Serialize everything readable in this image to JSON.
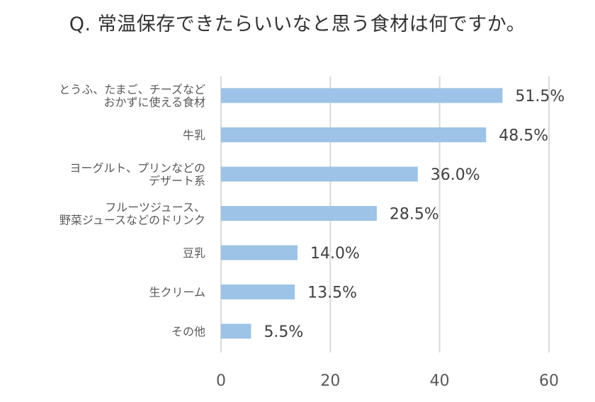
{
  "chart_data": {
    "type": "bar",
    "orientation": "horizontal",
    "title": "Q. 常温保存できたらいいなと思う食材は何ですか。",
    "xlabel": "",
    "ylabel": "",
    "categories": [
      "とうふ、たまご、チーズなど\nおかずに使える食材",
      "牛乳",
      "ヨーグルト、プリンなどの\nデザート系",
      "フルーツジュース、\n野菜ジュースなどのドリンク",
      "豆乳",
      "生クリーム",
      "その他"
    ],
    "values": [
      51.5,
      48.5,
      36.0,
      28.5,
      14.0,
      13.5,
      5.5
    ],
    "data_labels": [
      "51.5%",
      "48.5%",
      "36.0%",
      "28.5%",
      "14.0%",
      "13.5%",
      "5.5%"
    ],
    "xlim": [
      0,
      60
    ],
    "x_ticks": [
      0,
      20,
      40,
      60
    ],
    "x_tick_labels": [
      "0",
      "20",
      "40",
      "60"
    ],
    "grid": true,
    "legend": "none",
    "bar_color": "#9dc3e6",
    "grid_color": "#d9d9d9"
  }
}
